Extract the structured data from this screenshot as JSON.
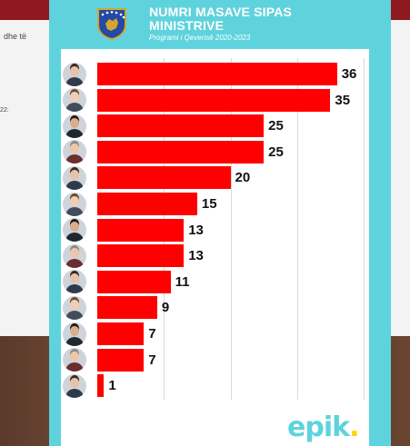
{
  "background": {
    "left_text_1": "dhe të",
    "left_text_2": "22:"
  },
  "header": {
    "title": "NUMRI MASAVE SIPAS MINISTRIVE",
    "subtitle": "Programi i Qeverisë 2020-2023",
    "seal_icon": "kosovo-coat-of-arms-icon"
  },
  "logo": {
    "text": "epik",
    "dot": "."
  },
  "colors": {
    "accent": "#5fd3dd",
    "bar": "#ff0000",
    "logo_dot": "#ffd200"
  },
  "chart_data": {
    "type": "bar",
    "orientation": "horizontal",
    "title": "NUMRI MASAVE SIPAS MINISTRIVE",
    "subtitle": "Programi i Qeverisë 2020-2023",
    "categories": [
      "",
      "",
      "",
      "",
      "",
      "",
      "",
      "",
      "",
      "",
      "",
      "",
      ""
    ],
    "values": [
      36,
      35,
      25,
      25,
      20,
      15,
      13,
      13,
      11,
      9,
      7,
      7,
      1
    ],
    "xlim": [
      0,
      40
    ],
    "grid": true,
    "legend": "none"
  }
}
